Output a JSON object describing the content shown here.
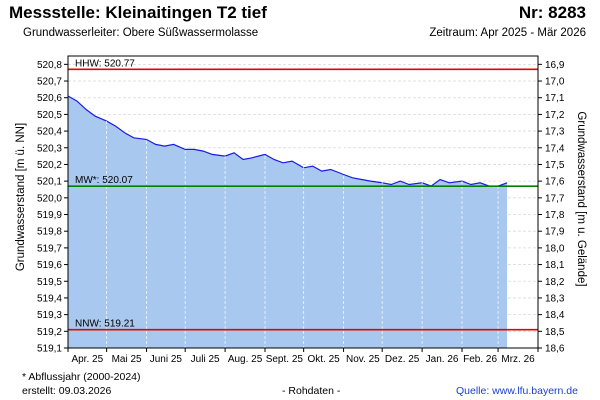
{
  "header": {
    "title": "Messstelle: Kleinaitingen T2 tief",
    "number": "Nr: 8283",
    "aquifer": "Grundwasserleiter:   Obere Süßwassermolasse",
    "period": "Zeitraum: Apr 2025 - Mär 2026"
  },
  "footer": {
    "note": "* Abflussjahr (2000-2024)",
    "created": "erstellt:  09.03.2026",
    "raw": "- Rohdaten -",
    "source": "Quelle:  www.lfu.bayern.de"
  },
  "colors": {
    "area_fill": "#a8c8f0",
    "series_line": "#1a1ae6",
    "hhw_line": "#e60000",
    "mw_line": "#008000",
    "nnw_line": "#e60000",
    "grid": "#d9d9d9"
  },
  "chart_data": {
    "type": "area",
    "ylabel": "Grundwasserstand [m ü. NN]",
    "ylabel_right": "Grundwasserstand [m u. Gelände]",
    "ylim": [
      519.1,
      520.85
    ],
    "yticks": [
      "520,8",
      "520,7",
      "520,6",
      "520,5",
      "520,4",
      "520,3",
      "520,2",
      "520,1",
      "520,0",
      "519,9",
      "519,8",
      "519,7",
      "519,6",
      "519,5",
      "519,4",
      "519,3",
      "519,2",
      "519,1"
    ],
    "yticks_right": [
      "16,9",
      "17,0",
      "17,1",
      "17,2",
      "17,3",
      "17,4",
      "17,5",
      "17,6",
      "17,7",
      "17,8",
      "17,9",
      "18,0",
      "18,1",
      "18,2",
      "18,3",
      "18,4",
      "18,5",
      "18,6"
    ],
    "xticks": [
      "Apr. 25",
      "Mai 25",
      "Juni 25",
      "Juli 25",
      "Aug. 25",
      "Sept. 25",
      "Okt. 25",
      "Nov. 25",
      "Dez. 25",
      "Jan. 26",
      "Feb. 26",
      "Mrz. 26"
    ],
    "grid": true,
    "reference_lines": [
      {
        "label": "HHW: 520.77",
        "value": 520.77
      },
      {
        "label": "MW*: 520.07",
        "value": 520.07
      },
      {
        "label": "NNW: 519.21",
        "value": 519.21
      }
    ],
    "series": [
      {
        "x": [
          "2025-04-01",
          "2025-04-08",
          "2025-04-15",
          "2025-04-22",
          "2025-05-01",
          "2025-05-08",
          "2025-05-15",
          "2025-05-22",
          "2025-06-01",
          "2025-06-08",
          "2025-06-15",
          "2025-06-22",
          "2025-07-01",
          "2025-07-08",
          "2025-07-15",
          "2025-07-22",
          "2025-08-01",
          "2025-08-08",
          "2025-08-15",
          "2025-08-22",
          "2025-09-01",
          "2025-09-08",
          "2025-09-15",
          "2025-09-22",
          "2025-10-01",
          "2025-10-08",
          "2025-10-15",
          "2025-10-22",
          "2025-11-01",
          "2025-11-08",
          "2025-11-15",
          "2025-11-22",
          "2025-12-01",
          "2025-12-08",
          "2025-12-15",
          "2025-12-22",
          "2026-01-01",
          "2026-01-08",
          "2026-01-15",
          "2026-01-22",
          "2026-02-01",
          "2026-02-08",
          "2026-02-15",
          "2026-02-22",
          "2026-03-01",
          "2026-03-08"
        ],
        "values": [
          520.61,
          520.58,
          520.53,
          520.49,
          520.46,
          520.43,
          520.39,
          520.36,
          520.35,
          520.32,
          520.31,
          520.32,
          520.29,
          520.29,
          520.28,
          520.26,
          520.25,
          520.27,
          520.23,
          520.24,
          520.26,
          520.23,
          520.21,
          520.22,
          520.18,
          520.19,
          520.16,
          520.17,
          520.14,
          520.12,
          520.11,
          520.1,
          520.09,
          520.08,
          520.1,
          520.08,
          520.09,
          520.07,
          520.11,
          520.09,
          520.1,
          520.08,
          520.09,
          520.07,
          520.07,
          520.09
        ]
      }
    ]
  }
}
